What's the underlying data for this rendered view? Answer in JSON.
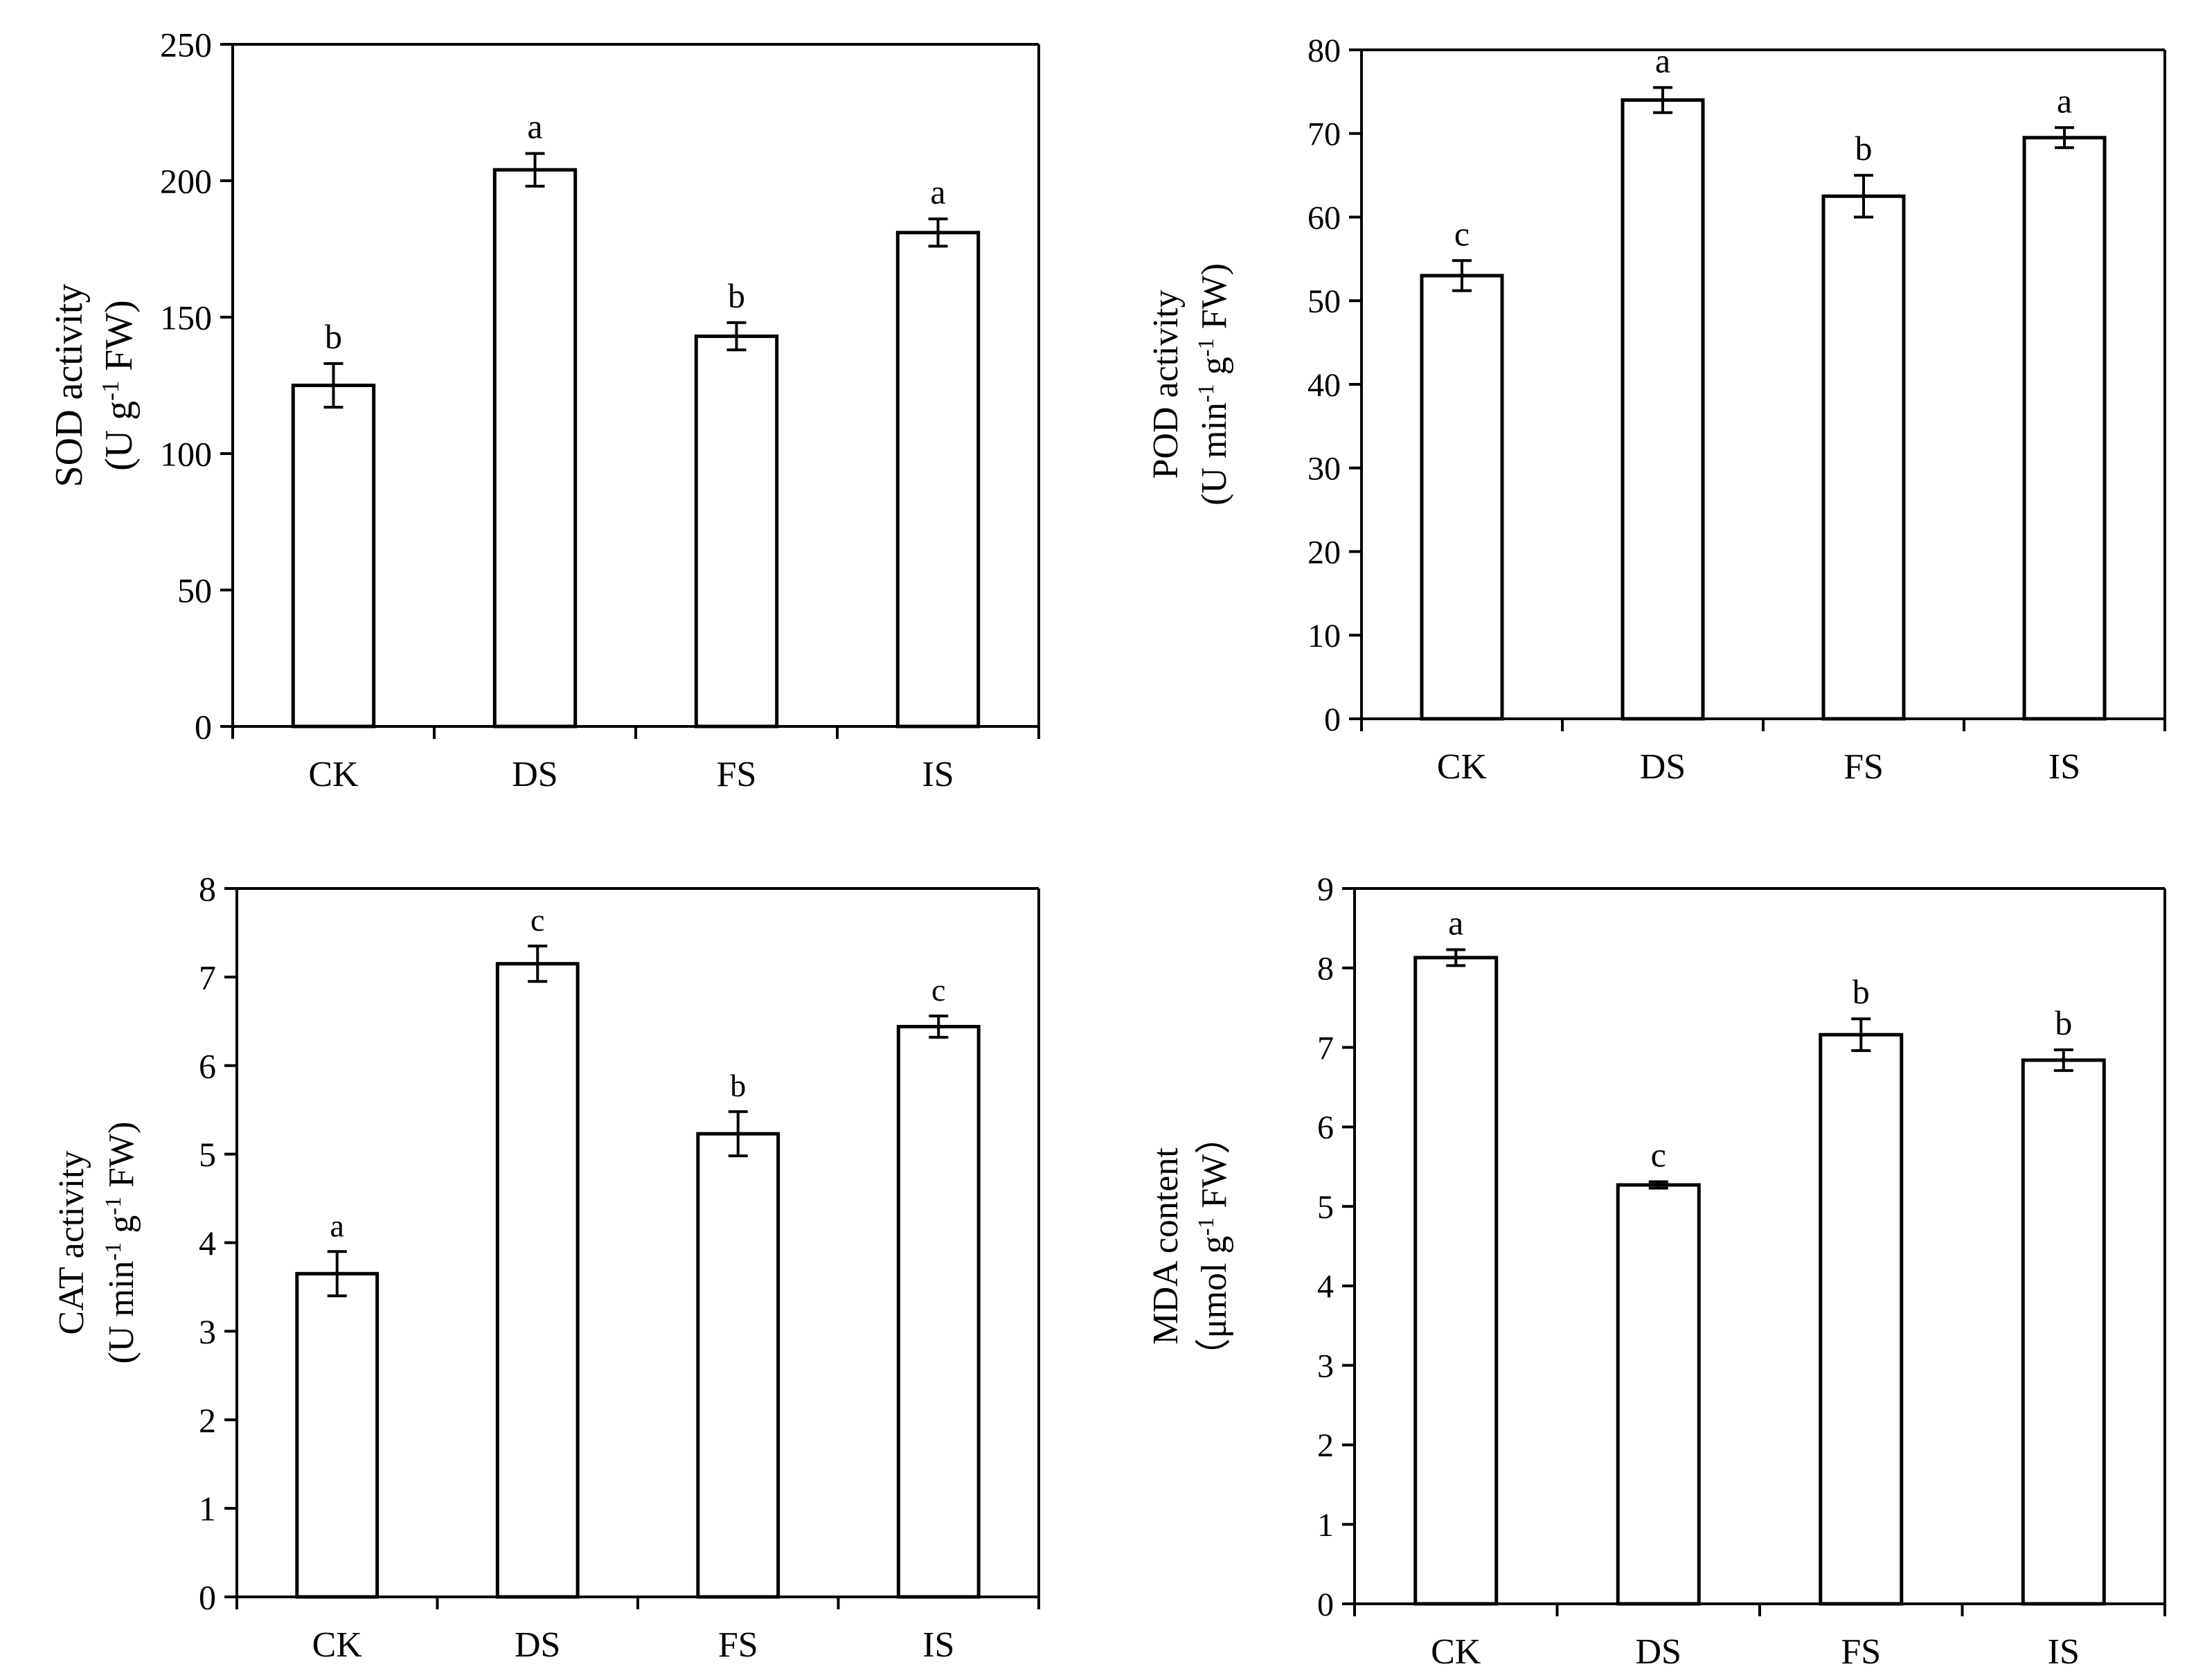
{
  "chart_data": [
    {
      "type": "bar",
      "categories": [
        "CK",
        "DS",
        "FS",
        "IS"
      ],
      "values": [
        125,
        204,
        143,
        181
      ],
      "errors": [
        8,
        6,
        5,
        5
      ],
      "letters": [
        "b",
        "a",
        "b",
        "a"
      ],
      "ylabel_line1": "SOD activity",
      "ylabel_line2": "(U g",
      "ylabel_sup": "-1",
      "ylabel_line2_end": " FW)",
      "ylim": [
        0,
        250
      ],
      "yticks": [
        "0",
        "50",
        "100",
        "150",
        "200",
        "250"
      ]
    },
    {
      "type": "bar",
      "categories": [
        "CK",
        "DS",
        "FS",
        "IS"
      ],
      "values": [
        53,
        74,
        62.5,
        69.5
      ],
      "errors": [
        1.8,
        1.5,
        2.5,
        1.2
      ],
      "letters": [
        "c",
        "a",
        "b",
        "a"
      ],
      "ylabel_line1": "POD activity",
      "ylabel_line2": "(U min",
      "ylabel_sup": "-1",
      "ylabel_line2_mid": " g",
      "ylabel_sup2": "-1",
      "ylabel_line2_end": " FW)",
      "ylim": [
        0,
        80
      ],
      "yticks": [
        "0",
        "10",
        "20",
        "30",
        "40",
        "50",
        "60",
        "70",
        "80"
      ]
    },
    {
      "type": "bar",
      "categories": [
        "CK",
        "DS",
        "FS",
        "IS"
      ],
      "values": [
        3.65,
        7.15,
        5.23,
        6.44
      ],
      "errors": [
        0.25,
        0.2,
        0.25,
        0.12
      ],
      "letters": [
        "a",
        "c",
        "b",
        "c"
      ],
      "ylabel_line1": "CAT activity",
      "ylabel_line2": "(U min",
      "ylabel_sup": "-1",
      "ylabel_line2_mid": " g",
      "ylabel_sup2": "-1",
      "ylabel_line2_end": " FW)",
      "ylim": [
        0,
        8
      ],
      "yticks": [
        "0",
        "1",
        "2",
        "3",
        "4",
        "5",
        "6",
        "7",
        "8"
      ]
    },
    {
      "type": "bar",
      "categories": [
        "CK",
        "DS",
        "FS",
        "IS"
      ],
      "values": [
        8.13,
        5.27,
        7.16,
        6.84
      ],
      "errors": [
        0.1,
        0.04,
        0.2,
        0.13
      ],
      "letters": [
        "a",
        "c",
        "b",
        "b"
      ],
      "ylabel_line1": "MDA content",
      "ylabel_line2": "（μmol g",
      "ylabel_sup": "-1",
      "ylabel_line2_end": " FW）",
      "ylim": [
        0,
        9
      ],
      "yticks": [
        "0",
        "1",
        "2",
        "3",
        "4",
        "5",
        "6",
        "7",
        "8",
        "9"
      ]
    }
  ]
}
